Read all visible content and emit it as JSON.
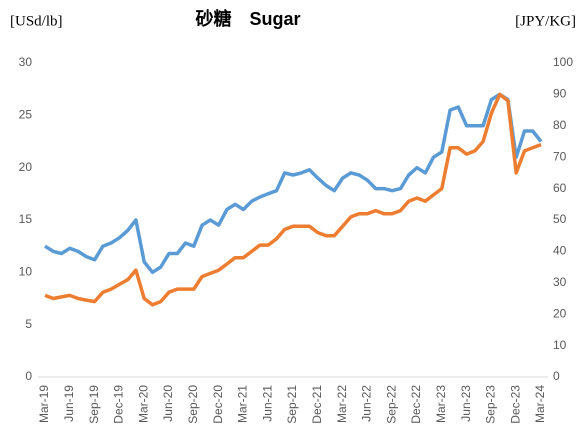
{
  "chart_data": {
    "type": "line",
    "title": "砂糖　Sugar",
    "y_label": "[USd/lb]",
    "y2_label": "[JPY/KG]",
    "categories": [
      "Mar-19",
      null,
      null,
      "Jun-19",
      null,
      null,
      "Sep-19",
      null,
      null,
      "Dec-19",
      null,
      null,
      "Mar-20",
      null,
      null,
      "Jun-20",
      null,
      null,
      "Sep-20",
      null,
      null,
      "Dec-20",
      null,
      null,
      "Mar-21",
      null,
      null,
      "Jun-21",
      null,
      null,
      "Sep-21",
      null,
      null,
      "Dec-21",
      null,
      null,
      "Mar-22",
      null,
      null,
      "Jun-22",
      null,
      null,
      "Sep-22",
      null,
      null,
      "Dec-22",
      null,
      null,
      "Mar-23",
      null,
      null,
      "Jun-23",
      null,
      null,
      "Sep-23",
      null,
      null,
      "Dec-23",
      null,
      null,
      "Mar-24"
    ],
    "series": [
      {
        "name": "USd/lb",
        "color": "#5b9bd5",
        "values": [
          12.5,
          12.0,
          11.8,
          12.3,
          12.0,
          11.5,
          11.2,
          12.5,
          12.8,
          13.3,
          14.0,
          15.0,
          11.0,
          10.0,
          10.5,
          11.8,
          11.8,
          12.8,
          12.5,
          14.5,
          15.0,
          14.5,
          16.0,
          16.5,
          16.0,
          16.8,
          17.2,
          17.5,
          17.8,
          19.5,
          19.3,
          19.5,
          19.8,
          19.0,
          18.3,
          17.8,
          19.0,
          19.5,
          19.3,
          18.8,
          18.0,
          18.0,
          17.8,
          18.0,
          19.3,
          20.0,
          19.5,
          21.0,
          21.5,
          25.5,
          25.8,
          24.0,
          24.0,
          24.0,
          26.5,
          27.0,
          26.5,
          21.0,
          23.5,
          23.5,
          22.5
        ]
      },
      {
        "name": "JPY/KG",
        "color": "#ed7d31",
        "axis": "y2",
        "values": [
          26,
          25,
          25.5,
          26,
          25,
          24.5,
          24,
          27,
          28,
          29.5,
          31,
          34,
          25,
          23,
          24,
          27,
          28,
          28,
          28,
          32,
          33,
          34,
          36,
          38,
          38,
          40,
          42,
          42,
          44,
          47,
          48,
          48,
          48,
          46,
          45,
          45,
          48,
          51,
          52,
          52,
          53,
          52,
          52,
          53,
          56,
          57,
          56,
          58,
          60,
          73,
          73,
          71,
          72,
          75,
          84,
          90,
          88,
          65,
          72,
          73,
          74
        ]
      }
    ],
    "ylim": [
      0,
      30
    ],
    "yticks": [
      0,
      5,
      10,
      15,
      20,
      25,
      30
    ],
    "y2lim": [
      0,
      100
    ],
    "y2ticks": [
      0,
      10,
      20,
      30,
      40,
      50,
      60,
      70,
      80,
      90,
      100
    ]
  }
}
